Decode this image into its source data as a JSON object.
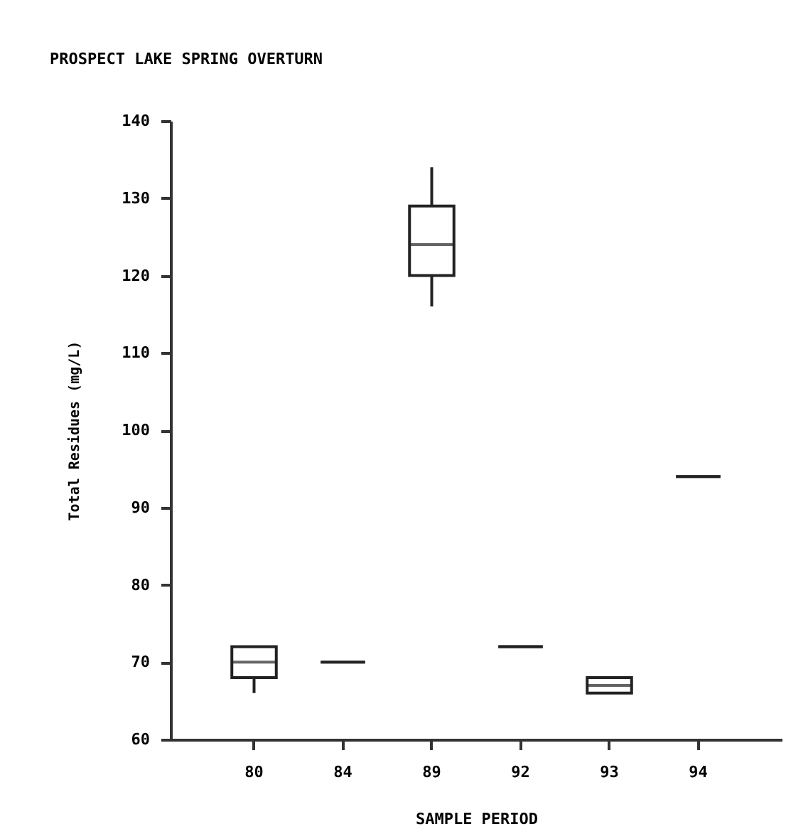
{
  "chart_data": {
    "type": "box",
    "title": "PROSPECT LAKE SPRING OVERTURN",
    "xlabel": "SAMPLE PERIOD",
    "ylabel": "Total Residues (mg/L)",
    "categories": [
      "80",
      "84",
      "89",
      "92",
      "93",
      "94"
    ],
    "boxes": [
      {
        "low": 66,
        "q1": 68,
        "median": 70,
        "q3": 72,
        "high": 72
      },
      {
        "low": 70,
        "q1": 70,
        "median": 70,
        "q3": 70,
        "high": 70
      },
      {
        "low": 116,
        "q1": 120,
        "median": 124,
        "q3": 129,
        "high": 134
      },
      {
        "low": 72,
        "q1": 72,
        "median": 72,
        "q3": 72,
        "high": 72
      },
      {
        "low": 66,
        "q1": 66,
        "median": 67,
        "q3": 68,
        "high": 68
      },
      {
        "low": 94,
        "q1": 94,
        "median": 94,
        "q3": 94,
        "high": 94
      }
    ],
    "ylim": [
      60,
      140
    ],
    "yticks": [
      60,
      70,
      80,
      90,
      100,
      110,
      120,
      130,
      140
    ]
  }
}
